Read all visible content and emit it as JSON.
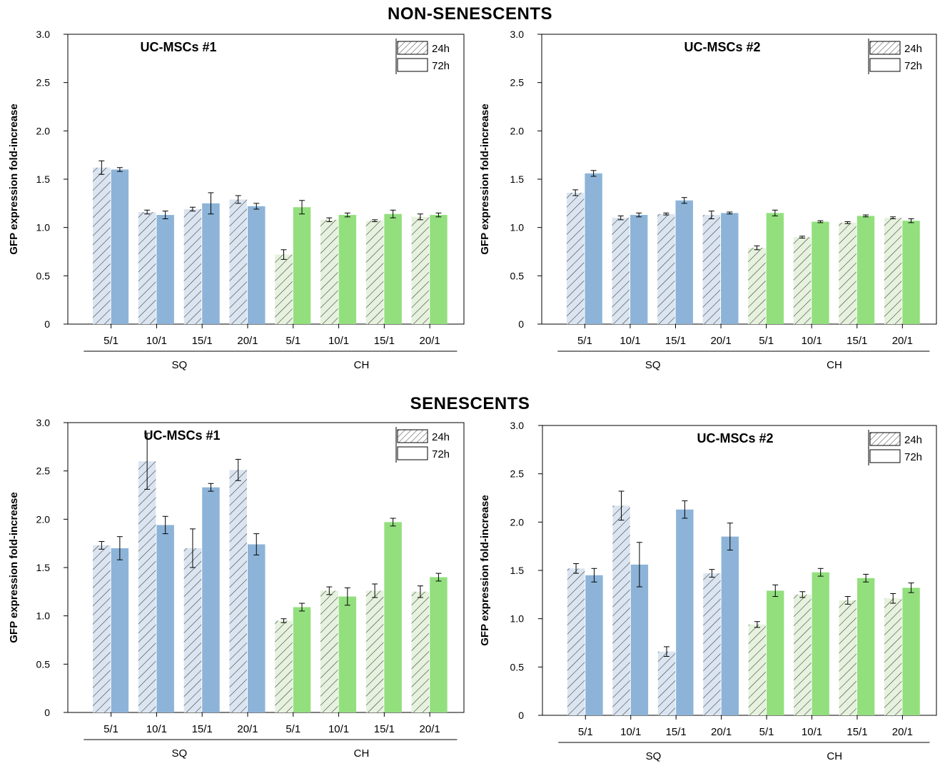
{
  "sections": [
    {
      "title": "NON-SENESCENTS"
    },
    {
      "title": "SENESCENTS"
    }
  ],
  "colors": {
    "sq": "#8db4d8",
    "ch": "#93df7e",
    "hatch_sq_bg": "#dbe5f1",
    "hatch_ch_bg": "#e6f2dd",
    "hatch_line": "#333333",
    "axis": "#000000",
    "errorbar": "#000000"
  },
  "chart_data": [
    {
      "type": "bar",
      "title": "UC-MSCs #1",
      "ylabel": "GFP expression fold-increase",
      "ylim": [
        0,
        3.0
      ],
      "yticks": [
        "0",
        "0.5",
        "1.0",
        "1.5",
        "2.0",
        "2.5",
        "3.0"
      ],
      "categories": [
        "5/1",
        "10/1",
        "15/1",
        "20/1",
        "5/1",
        "10/1",
        "15/1",
        "20/1"
      ],
      "groups": [
        {
          "label": "SQ",
          "from": 0,
          "to": 3
        },
        {
          "label": "CH",
          "from": 4,
          "to": 7
        }
      ],
      "legend": [
        "24h",
        "72h"
      ],
      "legend_position": "top-right",
      "series": [
        {
          "name": "24h",
          "values": [
            1.62,
            1.16,
            1.19,
            1.29,
            0.72,
            1.08,
            1.07,
            1.11
          ],
          "errors": [
            0.07,
            0.02,
            0.02,
            0.04,
            0.05,
            0.02,
            0.01,
            0.03
          ]
        },
        {
          "name": "72h",
          "values": [
            1.6,
            1.13,
            1.25,
            1.22,
            1.21,
            1.13,
            1.14,
            1.13
          ],
          "errors": [
            0.02,
            0.04,
            0.11,
            0.03,
            0.07,
            0.02,
            0.04,
            0.02
          ]
        }
      ]
    },
    {
      "type": "bar",
      "title": "UC-MSCs #2",
      "ylabel": "GFP expression fold-increase",
      "ylim": [
        0,
        3.0
      ],
      "yticks": [
        "0",
        "0.5",
        "1.0",
        "1.5",
        "2.0",
        "2.5",
        "3.0"
      ],
      "categories": [
        "5/1",
        "10/1",
        "15/1",
        "20/1",
        "5/1",
        "10/1",
        "15/1",
        "20/1"
      ],
      "groups": [
        {
          "label": "SQ",
          "from": 0,
          "to": 3
        },
        {
          "label": "CH",
          "from": 4,
          "to": 7
        }
      ],
      "legend": [
        "24h",
        "72h"
      ],
      "legend_position": "top-right",
      "series": [
        {
          "name": "24h",
          "values": [
            1.36,
            1.1,
            1.14,
            1.13,
            0.79,
            0.9,
            1.05,
            1.1
          ],
          "errors": [
            0.03,
            0.02,
            0.01,
            0.04,
            0.02,
            0.01,
            0.01,
            0.01
          ]
        },
        {
          "name": "72h",
          "values": [
            1.56,
            1.13,
            1.28,
            1.15,
            1.15,
            1.06,
            1.12,
            1.07
          ],
          "errors": [
            0.03,
            0.02,
            0.03,
            0.01,
            0.03,
            0.01,
            0.01,
            0.02
          ]
        }
      ]
    },
    {
      "type": "bar",
      "title": "UC-MSCs #1",
      "ylabel": "GFP expression fold-increase",
      "ylim": [
        0,
        3.0
      ],
      "yticks": [
        "0",
        "0.5",
        "1.0",
        "1.5",
        "2.0",
        "2.5",
        "3.0"
      ],
      "categories": [
        "5/1",
        "10/1",
        "15/1",
        "20/1",
        "5/1",
        "10/1",
        "15/1",
        "20/1"
      ],
      "groups": [
        {
          "label": "SQ",
          "from": 0,
          "to": 3
        },
        {
          "label": "CH",
          "from": 4,
          "to": 7
        }
      ],
      "legend": [
        "24h",
        "72h"
      ],
      "legend_position": "top-right",
      "series": [
        {
          "name": "24h",
          "values": [
            1.73,
            2.6,
            1.7,
            2.51,
            0.95,
            1.26,
            1.26,
            1.25
          ],
          "errors": [
            0.04,
            0.29,
            0.2,
            0.11,
            0.02,
            0.04,
            0.07,
            0.06
          ]
        },
        {
          "name": "72h",
          "values": [
            1.7,
            1.94,
            2.33,
            1.74,
            1.09,
            1.2,
            1.97,
            1.4
          ],
          "errors": [
            0.12,
            0.09,
            0.04,
            0.11,
            0.04,
            0.09,
            0.04,
            0.04
          ]
        }
      ]
    },
    {
      "type": "bar",
      "title": "UC-MSCs #2",
      "ylabel": "GFP expression fold-increase",
      "ylim": [
        0,
        3.0
      ],
      "yticks": [
        "0",
        "0.5",
        "1.0",
        "1.5",
        "2.0",
        "2.5",
        "3.0"
      ],
      "categories": [
        "5/1",
        "10/1",
        "15/1",
        "20/1",
        "5/1",
        "10/1",
        "15/1",
        "20/1"
      ],
      "groups": [
        {
          "label": "SQ",
          "from": 0,
          "to": 3
        },
        {
          "label": "CH",
          "from": 4,
          "to": 7
        }
      ],
      "legend": [
        "24h",
        "72h"
      ],
      "legend_position": "top-right",
      "series": [
        {
          "name": "24h",
          "values": [
            1.52,
            2.17,
            0.66,
            1.47,
            0.94,
            1.25,
            1.19,
            1.21
          ],
          "errors": [
            0.05,
            0.15,
            0.05,
            0.04,
            0.03,
            0.03,
            0.04,
            0.05
          ]
        },
        {
          "name": "72h",
          "values": [
            1.45,
            1.56,
            2.13,
            1.85,
            1.29,
            1.48,
            1.42,
            1.32
          ],
          "errors": [
            0.07,
            0.23,
            0.09,
            0.14,
            0.06,
            0.04,
            0.04,
            0.05
          ]
        }
      ]
    }
  ]
}
